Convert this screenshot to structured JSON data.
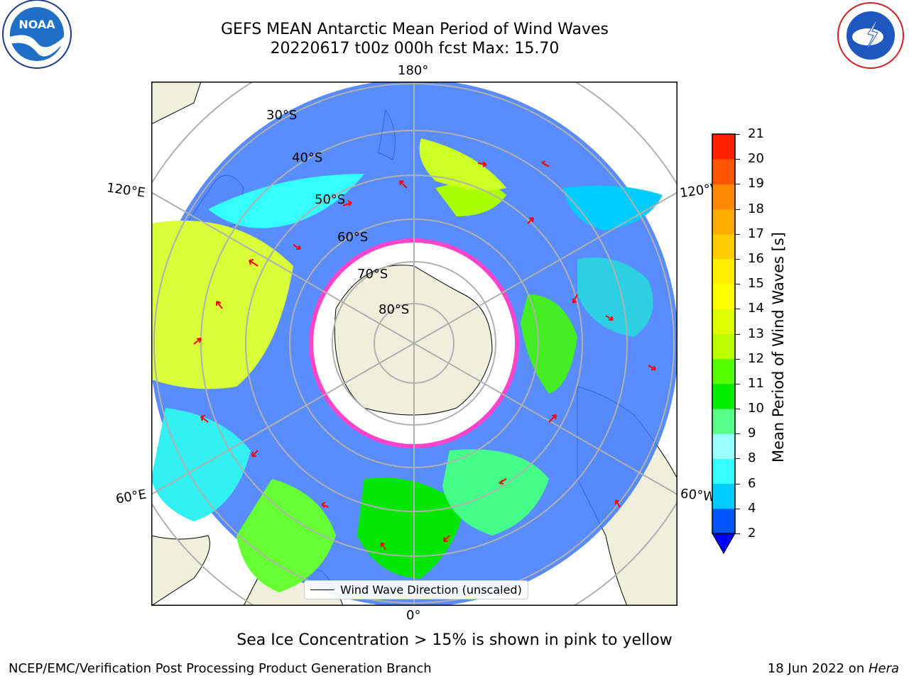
{
  "header": {
    "title_line1": "GEFS MEAN Antarctic Mean Period of Wind Waves",
    "title_line2": "20220617 t00z 000h fcst   Max: 15.70"
  },
  "logos": {
    "left": "NOAA",
    "left_ring": "NATIONAL OCEANIC AND ATMOSPHERIC ADMINISTRATION · U.S. DEPARTMENT OF COMMERCE",
    "right_ring": "NATIONAL WEATHER SERVICE"
  },
  "map": {
    "longitude_labels": {
      "top": "180°",
      "bottom": "0°",
      "left_upper": "120°E",
      "left_lower": "60°E",
      "right_upper": "120°W",
      "right_lower": "60°W"
    },
    "latitude_labels": [
      "30°S",
      "40°S",
      "50°S",
      "60°S",
      "70°S",
      "80°S"
    ],
    "legend_label": "Wind Wave Direction (unscaled)"
  },
  "colorbar": {
    "label": "Mean Period of Wind Waves [s]",
    "ticks": [
      "2",
      "4",
      "6",
      "8",
      "9",
      "10",
      "11",
      "12",
      "13",
      "14",
      "15",
      "16",
      "17",
      "18",
      "19",
      "20",
      "21"
    ],
    "colors": [
      "#0055ff",
      "#00ccff",
      "#33ffff",
      "#99ffff",
      "#55ff88",
      "#00ee00",
      "#55ff00",
      "#bbff00",
      "#ddff00",
      "#ffff00",
      "#ffee00",
      "#ffcc00",
      "#ffaa00",
      "#ff8800",
      "#ff5500",
      "#ff2200",
      "#ff0000"
    ],
    "under_color": "#0000ff"
  },
  "footer": {
    "sea_ice_note": "Sea Ice Concentration > 15% is shown in pink to yellow",
    "branch": "NCEP/EMC/Verification Post Processing Product Generation Branch",
    "date": "18 Jun 2022 on ",
    "host": "Hera"
  }
}
